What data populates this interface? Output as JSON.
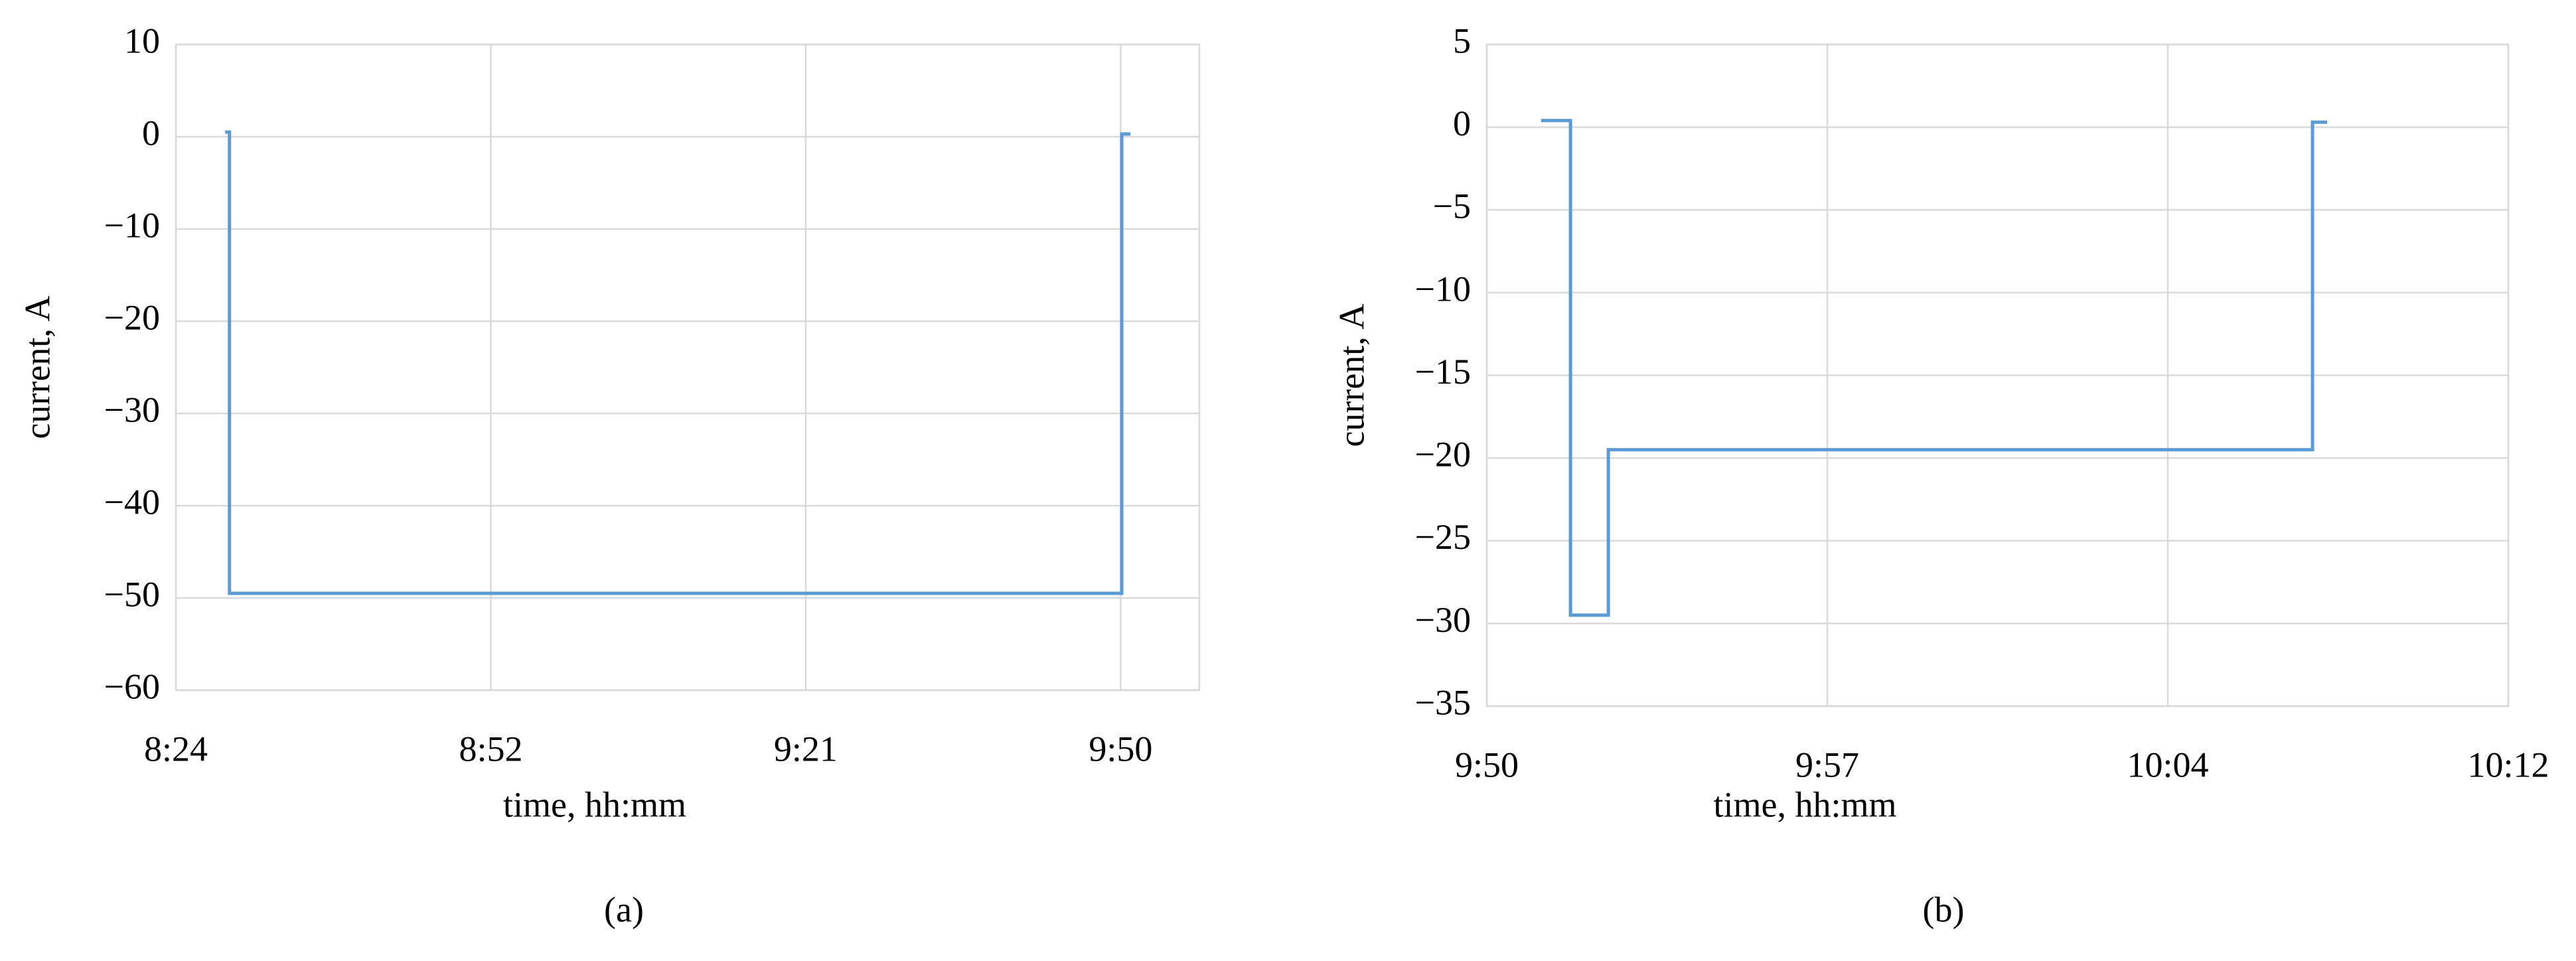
{
  "chart_data": [
    {
      "type": "line",
      "caption": "(a)",
      "xlabel": "time, hh:mm",
      "ylabel": "current, A",
      "x": [
        508.5,
        508.9,
        508.9,
        590.5,
        590.5,
        591.3
      ],
      "series": [
        {
          "color": "#5b9bd5",
          "values": [
            0.5,
            0.5,
            -49.5,
            -49.5,
            0.3,
            0.3
          ]
        }
      ],
      "xlim": [
        504,
        597.6
      ],
      "xticks": [
        {
          "value": 504,
          "label": "8:24"
        },
        {
          "value": 532.8,
          "label": "8:52"
        },
        {
          "value": 561.6,
          "label": "9:21"
        },
        {
          "value": 590.4,
          "label": "9:50"
        }
      ],
      "ylim": [
        -60,
        10
      ],
      "yticks": [
        {
          "value": -60,
          "label": "−60"
        },
        {
          "value": -50,
          "label": "−50"
        },
        {
          "value": -40,
          "label": "−40"
        },
        {
          "value": -30,
          "label": "−30"
        },
        {
          "value": -20,
          "label": "−20"
        },
        {
          "value": -10,
          "label": "−10"
        },
        0,
        10
      ],
      "grid": true
    },
    {
      "type": "line",
      "caption": "(b)",
      "xlabel": "time, hh:mm",
      "ylabel": "current, A",
      "x": [
        591.55,
        592.17,
        592.17,
        592.97,
        592.97,
        607.86,
        607.86,
        608.17
      ],
      "series": [
        {
          "color": "#5b9bd5",
          "values": [
            0.4,
            0.4,
            -29.5,
            -29.5,
            -19.5,
            -19.5,
            0.3,
            0.3
          ]
        }
      ],
      "xlim": [
        590.4,
        612
      ],
      "xticks": [
        {
          "value": 590.4,
          "label": "9:50"
        },
        {
          "value": 597.6,
          "label": "9:57"
        },
        {
          "value": 604.8,
          "label": "10:04"
        },
        {
          "value": 612,
          "label": "10:12"
        }
      ],
      "ylim": [
        -35,
        5
      ],
      "yticks": [
        {
          "value": -35,
          "label": "−35"
        },
        {
          "value": -30,
          "label": "−30"
        },
        {
          "value": -25,
          "label": "−25"
        },
        {
          "value": -20,
          "label": "−20"
        },
        {
          "value": -15,
          "label": "−15"
        },
        {
          "value": -10,
          "label": "−10"
        },
        {
          "value": -5,
          "label": "−5"
        },
        0,
        5
      ],
      "grid": true
    }
  ]
}
